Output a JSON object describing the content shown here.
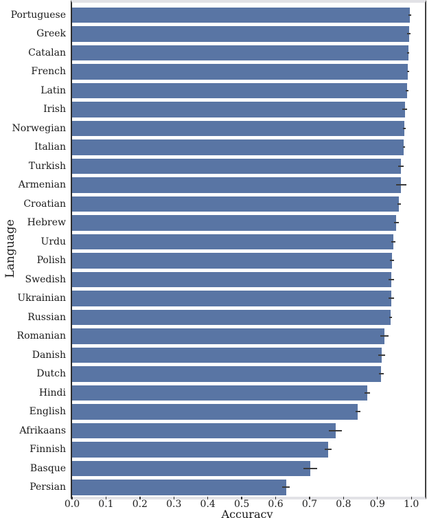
{
  "figure": {
    "background": "#ffffff",
    "bar_color": "#5975a4",
    "error_color": "#3a3a3a",
    "spine_dark": "#333333",
    "spine_light": "#e2e2e6",
    "text_color": "#1a1a1a"
  },
  "chart_data": {
    "type": "bar",
    "orientation": "horizontal",
    "title": "",
    "xlabel": "Accuracy",
    "ylabel": "Language",
    "xlim": [
      0,
      1.04
    ],
    "grid": false,
    "legend_position": "none",
    "x_ticks": [
      0,
      0.1,
      0.2,
      0.3,
      0.4,
      0.5,
      0.6,
      0.7,
      0.8,
      0.9,
      1.0
    ],
    "x_tick_labels": [
      "0.0",
      "0.1",
      "0.2",
      "0.3",
      "0.4",
      "0.5",
      "0.6",
      "0.7",
      "0.8",
      "0.9",
      "1.0"
    ],
    "categories": [
      "Portuguese",
      "Greek",
      "Catalan",
      "French",
      "Latin",
      "Irish",
      "Norwegian",
      "Italian",
      "Turkish",
      "Armenian",
      "Croatian",
      "Hebrew",
      "Urdu",
      "Polish",
      "Swedish",
      "Ukrainian",
      "Russian",
      "Romanian",
      "Danish",
      "Dutch",
      "Hindi",
      "English",
      "Afrikaans",
      "Finnish",
      "Basque",
      "Persian"
    ],
    "values": [
      0.995,
      0.993,
      0.991,
      0.99,
      0.988,
      0.981,
      0.979,
      0.978,
      0.97,
      0.97,
      0.964,
      0.956,
      0.947,
      0.942,
      0.941,
      0.94,
      0.938,
      0.921,
      0.912,
      0.911,
      0.87,
      0.842,
      0.776,
      0.755,
      0.702,
      0.631
    ],
    "errors": [
      0.004,
      0.005,
      0.003,
      0.003,
      0.004,
      0.007,
      0.004,
      0.003,
      0.008,
      0.015,
      0.005,
      0.007,
      0.007,
      0.006,
      0.008,
      0.008,
      0.004,
      0.012,
      0.01,
      0.007,
      0.008,
      0.007,
      0.02,
      0.01,
      0.021,
      0.011
    ]
  }
}
